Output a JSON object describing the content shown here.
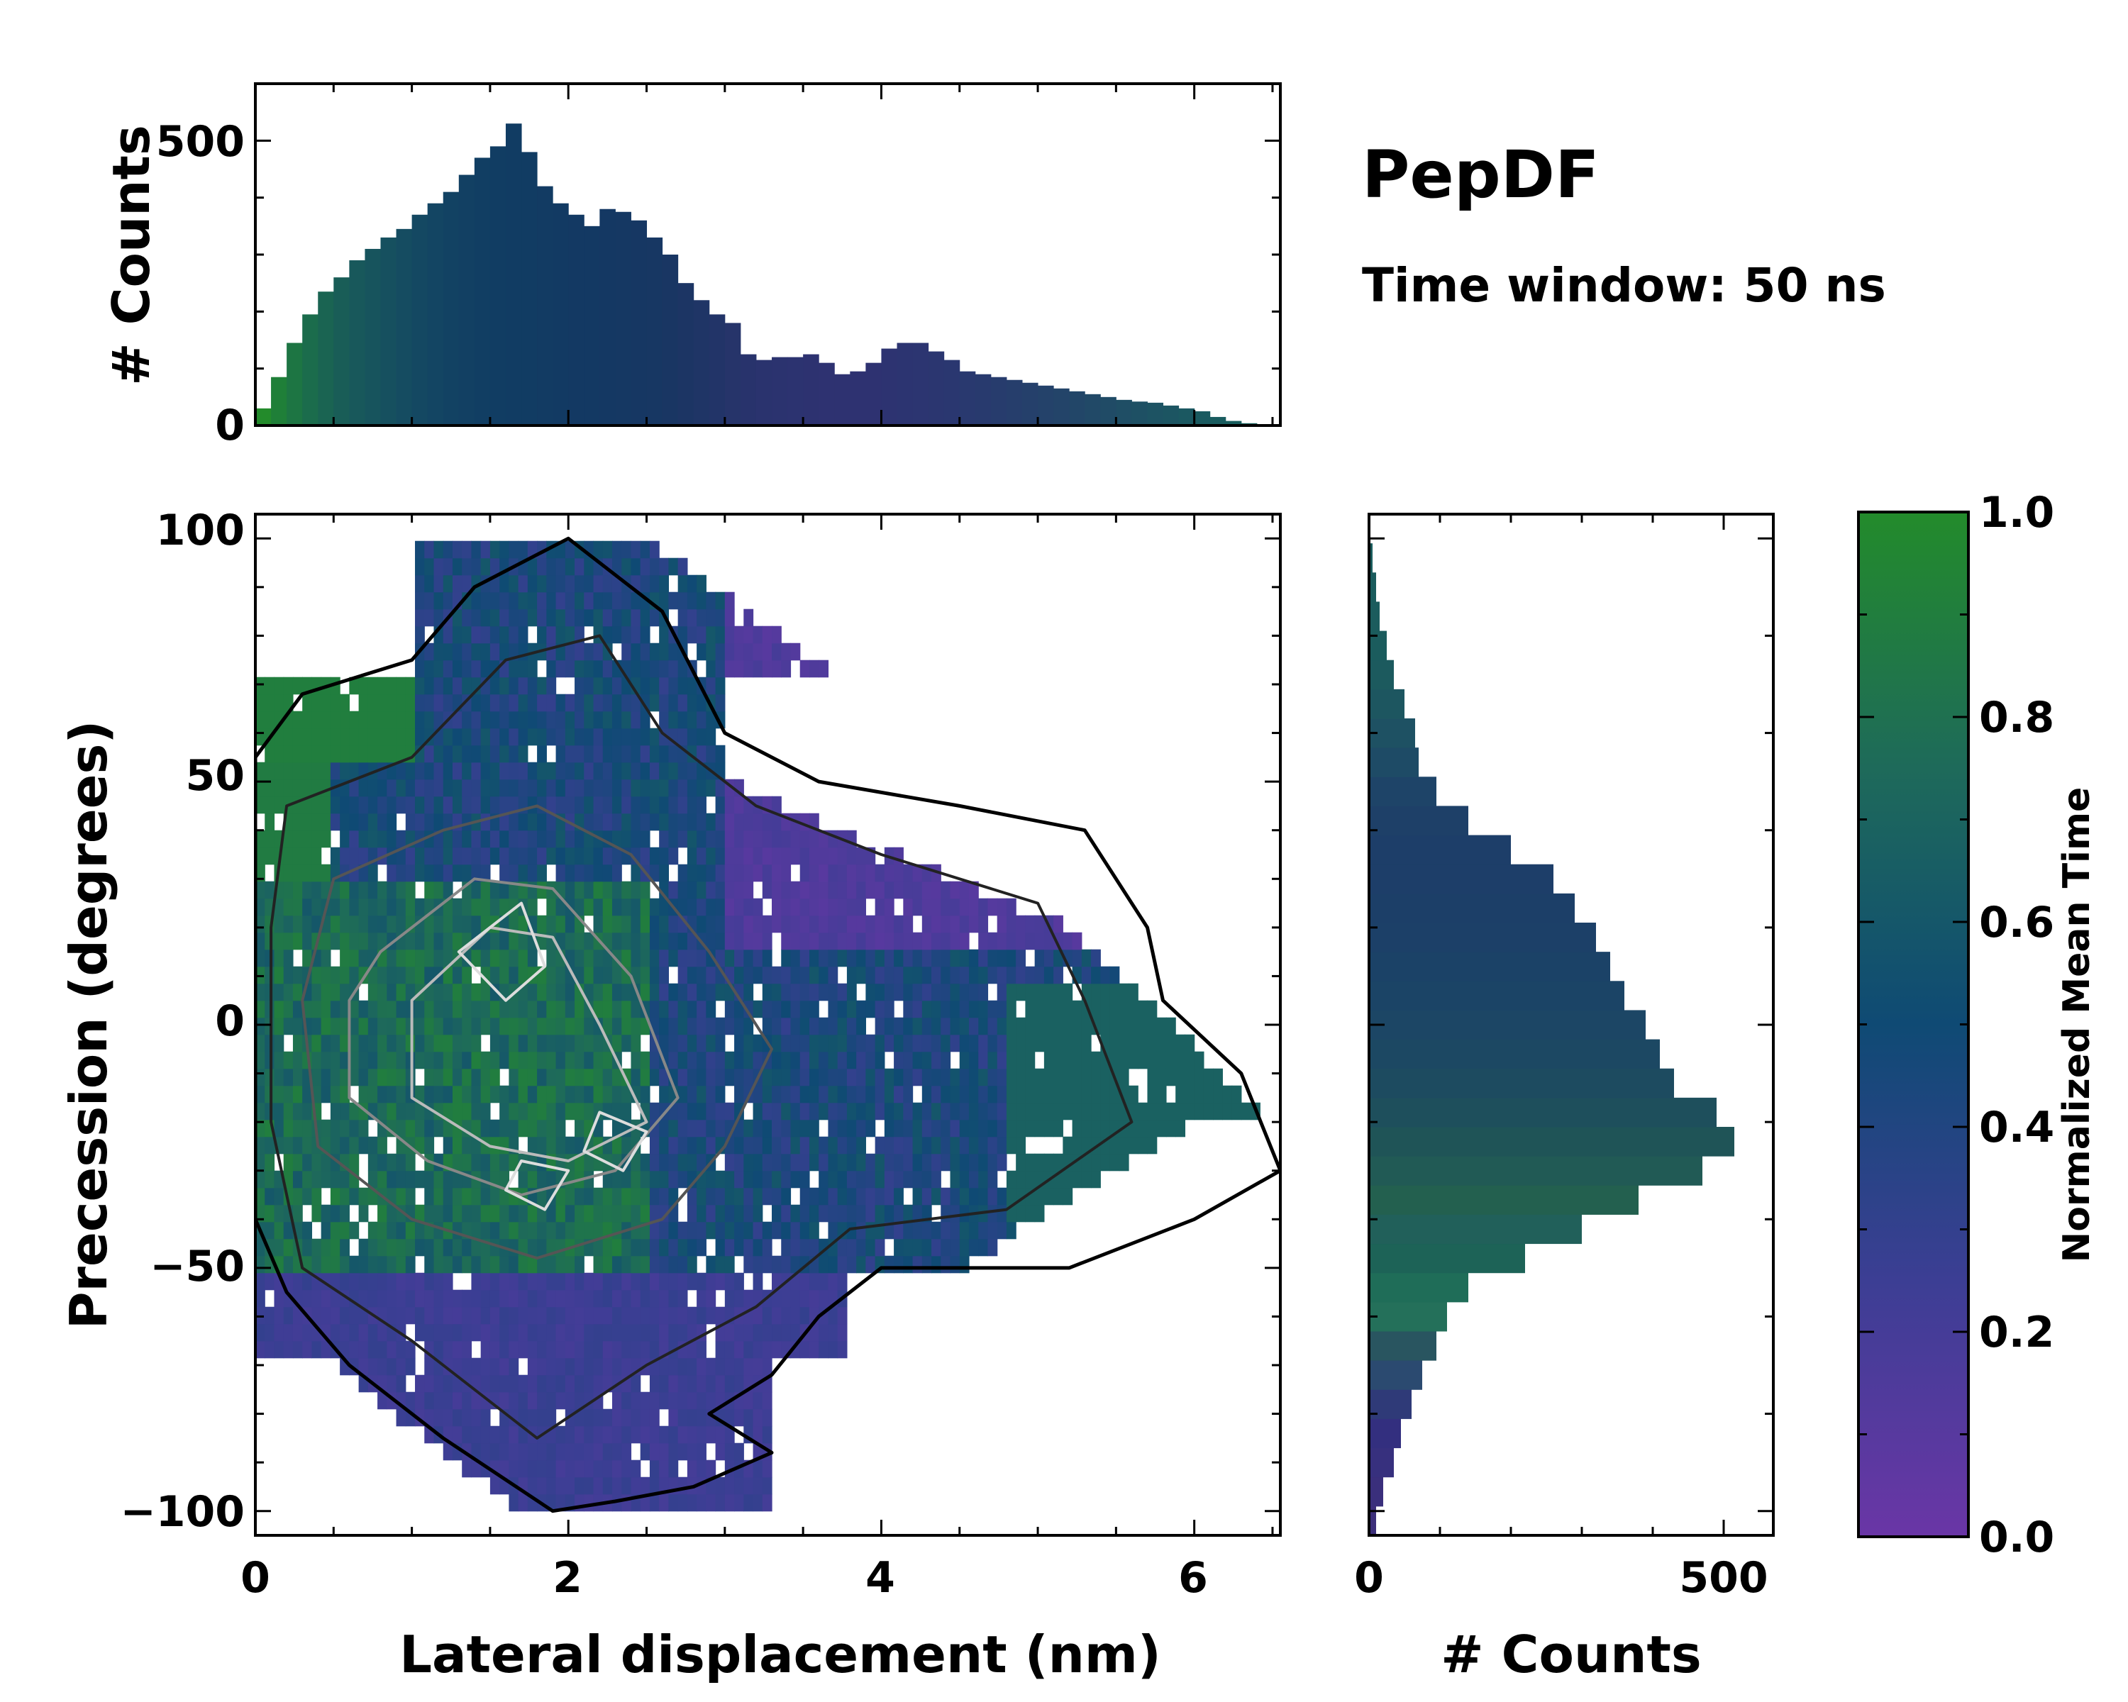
{
  "chart_data": [
    {
      "name": "top-marginal-histogram",
      "type": "bar",
      "xlim": [
        0,
        6.55
      ],
      "ylim": [
        0,
        600
      ],
      "yticks": [
        0,
        500
      ],
      "ylabel": "# Counts",
      "x": [
        0.05,
        0.15,
        0.25,
        0.35,
        0.45,
        0.55,
        0.65,
        0.75,
        0.85,
        0.95,
        1.05,
        1.15,
        1.25,
        1.35,
        1.45,
        1.55,
        1.65,
        1.75,
        1.85,
        1.95,
        2.05,
        2.15,
        2.25,
        2.35,
        2.45,
        2.55,
        2.65,
        2.75,
        2.85,
        2.95,
        3.05,
        3.15,
        3.25,
        3.35,
        3.45,
        3.55,
        3.65,
        3.75,
        3.85,
        3.95,
        4.05,
        4.15,
        4.25,
        4.35,
        4.45,
        4.55,
        4.65,
        4.75,
        4.85,
        4.95,
        5.05,
        5.15,
        5.25,
        5.35,
        5.45,
        5.55,
        5.65,
        5.75,
        5.85,
        5.95,
        6.05,
        6.15,
        6.25,
        6.35,
        6.45
      ],
      "values": [
        30,
        85,
        145,
        195,
        235,
        260,
        290,
        310,
        330,
        345,
        370,
        390,
        410,
        440,
        470,
        490,
        530,
        480,
        420,
        390,
        370,
        350,
        380,
        375,
        360,
        330,
        300,
        250,
        220,
        195,
        180,
        125,
        115,
        120,
        120,
        125,
        110,
        90,
        95,
        110,
        135,
        145,
        145,
        130,
        115,
        95,
        90,
        85,
        80,
        75,
        70,
        65,
        60,
        55,
        50,
        45,
        42,
        40,
        35,
        30,
        25,
        15,
        8,
        4,
        2
      ],
      "colors": [
        "#238b2b",
        "#1f7f38",
        "#1d7543",
        "#1b6c4c",
        "#1a6452",
        "#195d57",
        "#18585b",
        "#17545d",
        "#16505f",
        "#154c61",
        "#144862",
        "#134563",
        "#124263",
        "#124063",
        "#113e63",
        "#113d63",
        "#113c63",
        "#113c63",
        "#123b63",
        "#123a63",
        "#133963",
        "#133963",
        "#143863",
        "#153863",
        "#163763",
        "#173763",
        "#193663",
        "#1c3564",
        "#1f3566",
        "#223468",
        "#26346a",
        "#28336c",
        "#2a336e",
        "#2b336f",
        "#2c3370",
        "#2d3270",
        "#2e3271",
        "#2e3271",
        "#2e3271",
        "#2e3271",
        "#2d3371",
        "#2c3471",
        "#2c3571",
        "#2b3670",
        "#2a3770",
        "#29396f",
        "#283a6e",
        "#273c6d",
        "#263e6c",
        "#25406b",
        "#24426a",
        "#234469",
        "#224668",
        "#214967",
        "#204b66",
        "#1f4e65",
        "#1e5064",
        "#1d5363",
        "#1c5562",
        "#1b5861",
        "#1a5a60",
        "#195c5f",
        "#185e5e",
        "#17605d",
        "#16625c"
      ]
    },
    {
      "name": "right-marginal-histogram",
      "type": "bar",
      "orientation": "horizontal",
      "ylim": [
        -105,
        105
      ],
      "xlim": [
        0,
        570
      ],
      "xticks": [
        0,
        500
      ],
      "xlabel": "# Counts",
      "y": [
        -102,
        -96,
        -90,
        -84,
        -78,
        -72,
        -66,
        -60,
        -54,
        -48,
        -42,
        -36,
        -30,
        -24,
        -18,
        -12,
        -6,
        0,
        6,
        12,
        18,
        24,
        30,
        36,
        42,
        48,
        54,
        60,
        66,
        72,
        78,
        84,
        90,
        96,
        102
      ],
      "values": [
        10,
        20,
        35,
        45,
        60,
        75,
        95,
        110,
        140,
        220,
        300,
        380,
        470,
        515,
        490,
        430,
        410,
        390,
        360,
        340,
        320,
        290,
        260,
        200,
        140,
        95,
        70,
        65,
        50,
        35,
        25,
        15,
        10,
        5,
        2
      ],
      "colors": [
        "#3c2f7a",
        "#3a2f7c",
        "#37307e",
        "#332f7f",
        "#2f3a78",
        "#2b4a70",
        "#295560",
        "#24705a",
        "#1f6d58",
        "#1d6357",
        "#21605a",
        "#23604f",
        "#215a55",
        "#1f5457",
        "#1e4f5c",
        "#1d4b60",
        "#1c4863",
        "#1c4665",
        "#1b4466",
        "#1b4267",
        "#1c4068",
        "#1c3f68",
        "#1d3e69",
        "#1d3e69",
        "#1e4068",
        "#1e4468",
        "#1e4b66",
        "#1e5163",
        "#1d5660",
        "#1c5a5e",
        "#1b5c5d",
        "#1b5c5d",
        "#1a5c5d",
        "#1a5c5d",
        "#1a5c5d"
      ]
    },
    {
      "name": "joint-heatmap",
      "type": "heatmap",
      "xlim": [
        0,
        6.55
      ],
      "ylim": [
        -105,
        105
      ],
      "xticks": [
        0,
        2,
        4,
        6
      ],
      "yticks": [
        -100,
        -50,
        0,
        50,
        100
      ],
      "xlabel": "Lateral displacement (nm)",
      "ylabel": "Precession (degrees)",
      "colormap_stops": [
        "#6a36a6",
        "#3c3e94",
        "#0f4a74",
        "#1e6a5a",
        "#238b2b"
      ]
    },
    {
      "name": "colorbar",
      "type": "colorbar",
      "range": [
        0.0,
        1.0
      ],
      "ticks": [
        "0.0",
        "0.2",
        "0.4",
        "0.6",
        "0.8",
        "1.0"
      ],
      "label": "Normalized Mean Time"
    }
  ],
  "annotations": {
    "title": "PepDF",
    "subtitle": "Time window: 50 ns"
  },
  "labels": {
    "top_ytick_0": "0",
    "top_ytick_500": "500",
    "main_xticks": [
      "0",
      "2",
      "4",
      "6"
    ],
    "main_yticks": [
      "100",
      "50",
      "0",
      "−50",
      "−100"
    ],
    "right_xticks": [
      "0",
      "500"
    ]
  }
}
